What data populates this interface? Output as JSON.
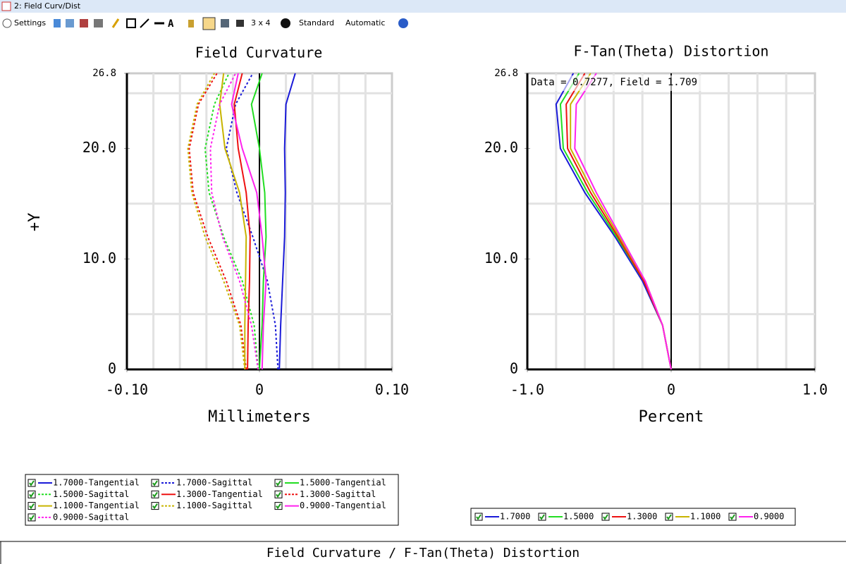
{
  "window": {
    "title": "2: Field Curv/Dist"
  },
  "toolbar": {
    "settings": "Settings",
    "layout": "3 x 4",
    "style": "Standard",
    "scale": "Automatic"
  },
  "footer": {
    "caption": "Field Curvature / F-Tan(Theta) Distortion"
  },
  "chart_data": [
    {
      "type": "line",
      "title": "Field Curvature",
      "x_label": "Millimeters",
      "y_label": "+Y",
      "field": [
        0,
        4,
        8,
        12,
        16,
        20,
        24,
        26.8
      ],
      "xlim": [
        -0.1,
        0.1
      ],
      "xticks": [
        {
          "value": -0.1,
          "label": "-0.10"
        },
        0,
        {
          "value": 0.1,
          "label": "0.10"
        }
      ],
      "ylim": [
        0,
        26.8
      ],
      "yticks": [
        0,
        {
          "value": 10,
          "label": "10.0"
        },
        {
          "value": 20,
          "label": "20.0"
        },
        26.8
      ],
      "xgrid": [
        -0.08,
        -0.06,
        -0.04,
        -0.02,
        0.02,
        0.04,
        0.06,
        0.08
      ],
      "ygrid": [
        5,
        15,
        25
      ],
      "grid": true,
      "series": [
        {
          "name": "1.7000-Tangential",
          "color": "#1a1ad8",
          "dashed": false,
          "values": [
            0.015,
            0.016,
            0.0175,
            0.019,
            0.0195,
            0.019,
            0.02,
            0.027
          ]
        },
        {
          "name": "1.7000-Sagittal",
          "color": "#1a1ad8",
          "dashed": true,
          "values": [
            0.014,
            0.012,
            0.006,
            -0.005,
            -0.017,
            -0.025,
            -0.018,
            -0.005
          ]
        },
        {
          "name": "1.5000-Tangential",
          "color": "#22dd22",
          "dashed": false,
          "values": [
            0,
            0.002,
            0.003,
            0.005,
            0.004,
            0,
            -0.006,
            0.002
          ]
        },
        {
          "name": "1.5000-Sagittal",
          "color": "#22dd22",
          "dashed": true,
          "values": [
            -0.001,
            -0.004,
            -0.013,
            -0.027,
            -0.038,
            -0.041,
            -0.034,
            -0.023
          ]
        },
        {
          "name": "1.3000-Tangential",
          "color": "#ee1111",
          "dashed": false,
          "values": [
            -0.009,
            -0.0085,
            -0.0075,
            -0.007,
            -0.01,
            -0.016,
            -0.019,
            -0.013
          ]
        },
        {
          "name": "1.3000-Sagittal",
          "color": "#ee1111",
          "dashed": true,
          "values": [
            -0.01,
            -0.014,
            -0.025,
            -0.039,
            -0.05,
            -0.053,
            -0.046,
            -0.032
          ]
        },
        {
          "name": "1.1000-Tangential",
          "color": "#c8b400",
          "dashed": false,
          "values": [
            -0.011,
            -0.011,
            -0.0105,
            -0.01,
            -0.015,
            -0.026,
            -0.03,
            -0.027
          ]
        },
        {
          "name": "1.1000-Sagittal",
          "color": "#c8b400",
          "dashed": true,
          "values": [
            -0.011,
            -0.015,
            -0.027,
            -0.041,
            -0.051,
            -0.054,
            -0.047,
            -0.034
          ]
        },
        {
          "name": "0.9000-Tangential",
          "color": "#ff22ee",
          "dashed": false,
          "values": [
            0.002,
            0.003,
            0.005,
            0.002,
            -0.002,
            -0.013,
            -0.021,
            -0.016
          ]
        },
        {
          "name": "0.9000-Sagittal",
          "color": "#ff22ee",
          "dashed": true,
          "values": [
            -0.001,
            -0.006,
            -0.015,
            -0.028,
            -0.036,
            -0.037,
            -0.03,
            -0.018
          ]
        }
      ]
    },
    {
      "type": "line",
      "title": "F-Tan(Theta) Distortion",
      "x_label": "Percent",
      "annotation": "Data = 0.7277, Field = 1.709",
      "field": [
        0,
        4,
        8,
        12,
        16,
        20,
        24,
        26.8
      ],
      "xlim": [
        -1,
        1
      ],
      "xticks": [
        {
          "value": -1,
          "label": "-1.0"
        },
        0,
        {
          "value": 1,
          "label": "1.0"
        }
      ],
      "ylim": [
        0,
        26.8
      ],
      "yticks": [
        0,
        {
          "value": 10,
          "label": "10.0"
        },
        {
          "value": 20,
          "label": "20.0"
        },
        26.8
      ],
      "xgrid": [
        -0.8,
        -0.6,
        -0.4,
        -0.2,
        0.2,
        0.4,
        0.6,
        0.8
      ],
      "ygrid": [
        5,
        15,
        25
      ],
      "grid": true,
      "series": [
        {
          "name": "1.7000",
          "color": "#1a1ad8",
          "dashed": false,
          "values": [
            0,
            -0.06,
            -0.2,
            -0.39,
            -0.6,
            -0.77,
            -0.8,
            -0.68
          ]
        },
        {
          "name": "1.5000",
          "color": "#22dd22",
          "dashed": false,
          "values": [
            0,
            -0.06,
            -0.19,
            -0.38,
            -0.58,
            -0.75,
            -0.77,
            -0.64
          ]
        },
        {
          "name": "1.3000",
          "color": "#ee1111",
          "dashed": false,
          "values": [
            0,
            -0.06,
            -0.19,
            -0.37,
            -0.56,
            -0.72,
            -0.73,
            -0.6
          ]
        },
        {
          "name": "1.1000",
          "color": "#c8b400",
          "dashed": false,
          "values": [
            0,
            -0.06,
            -0.18,
            -0.36,
            -0.54,
            -0.7,
            -0.7,
            -0.56
          ]
        },
        {
          "name": "0.9000",
          "color": "#ff22ee",
          "dashed": false,
          "values": [
            0,
            -0.06,
            -0.18,
            -0.35,
            -0.52,
            -0.67,
            -0.66,
            -0.52
          ]
        }
      ]
    }
  ]
}
